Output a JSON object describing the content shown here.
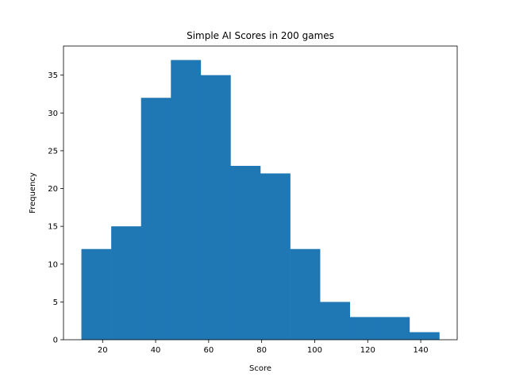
{
  "chart_data": {
    "type": "bar",
    "title": "Simple AI Scores in 200 games",
    "xlabel": "Score",
    "ylabel": "Frequency",
    "bin_edges": [
      12,
      23.25,
      34.5,
      45.75,
      57,
      68.25,
      79.5,
      90.75,
      102,
      113.25,
      124.5,
      135.75,
      147
    ],
    "values": [
      12,
      15,
      32,
      37,
      35,
      23,
      22,
      12,
      5,
      3,
      3,
      1
    ],
    "xlim": [
      5.25,
      153.75
    ],
    "ylim": [
      0,
      38.85
    ],
    "xticks": [
      20,
      40,
      60,
      80,
      100,
      120,
      140
    ],
    "yticks": [
      0,
      5,
      10,
      15,
      20,
      25,
      30,
      35
    ],
    "grid": false,
    "bar_color": "#1f77b4"
  }
}
